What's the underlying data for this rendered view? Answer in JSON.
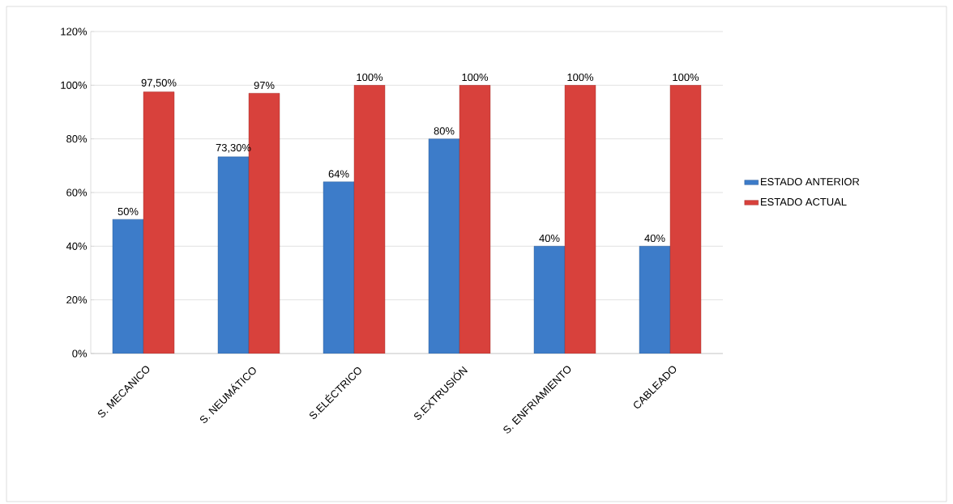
{
  "chart_data": {
    "type": "bar",
    "categories": [
      "S. MECANICO",
      "S. NEUMÁTICO",
      "S.ELÉCTRICO",
      "S.EXTRUSIÓN",
      "S. ENFRIAMIENTO",
      "CABLEADO"
    ],
    "series": [
      {
        "name": "ESTADO ANTERIOR",
        "color": "#3d7cc9",
        "values": [
          50,
          73.3,
          64,
          80,
          40,
          40
        ],
        "value_labels": [
          "50%",
          "73,30%",
          "64%",
          "80%",
          "40%",
          "40%"
        ]
      },
      {
        "name": "ESTADO ACTUAL",
        "color": "#d8413c",
        "values": [
          97.5,
          97,
          100,
          100,
          100,
          100
        ],
        "value_labels": [
          "97,50%",
          "97%",
          "100%",
          "100%",
          "100%",
          "100%"
        ]
      }
    ],
    "ylim": [
      0,
      120
    ],
    "yticks": [
      {
        "value": 0,
        "label": "0%"
      },
      {
        "value": 20,
        "label": "20%"
      },
      {
        "value": 40,
        "label": "40%"
      },
      {
        "value": 60,
        "label": "60%"
      },
      {
        "value": 80,
        "label": "80%"
      },
      {
        "value": 100,
        "label": "100%"
      },
      {
        "value": 120,
        "label": "120%"
      }
    ],
    "grid": "y",
    "legend": "right"
  }
}
